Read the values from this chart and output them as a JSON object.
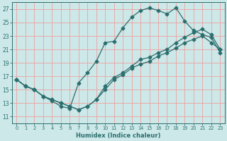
{
  "xlabel": "Humidex (Indice chaleur)",
  "bg_color": "#cce8e8",
  "line_color": "#2d6e6e",
  "grid_color": "#f0a0a0",
  "xlim": [
    -0.5,
    23.5
  ],
  "ylim": [
    10.0,
    28.0
  ],
  "yticks": [
    11,
    13,
    15,
    17,
    19,
    21,
    23,
    25,
    27
  ],
  "xticks": [
    0,
    1,
    2,
    3,
    4,
    5,
    6,
    7,
    8,
    9,
    10,
    11,
    12,
    13,
    14,
    15,
    16,
    17,
    18,
    19,
    20,
    21,
    22,
    23
  ],
  "line1_x": [
    0,
    1,
    2,
    3,
    4,
    5,
    6,
    7,
    8,
    9,
    10,
    11,
    12,
    13,
    14,
    15,
    16,
    17,
    18,
    19,
    20,
    21,
    22,
    23
  ],
  "line1_y": [
    16.5,
    15.5,
    15.0,
    14.0,
    13.3,
    12.5,
    12.2,
    16.0,
    17.5,
    19.2,
    22.0,
    22.2,
    24.2,
    25.8,
    26.8,
    27.2,
    26.8,
    26.3,
    27.2,
    25.2,
    23.8,
    23.2,
    22.8,
    20.5
  ],
  "line2_x": [
    0,
    1,
    2,
    3,
    4,
    5,
    6,
    7,
    8,
    9,
    10,
    11,
    12,
    13,
    14,
    15,
    16,
    17,
    18,
    19,
    20,
    21,
    22,
    23
  ],
  "line2_y": [
    16.5,
    15.5,
    15.0,
    14.0,
    13.5,
    13.0,
    12.5,
    12.0,
    12.5,
    13.5,
    15.5,
    16.8,
    17.5,
    18.5,
    19.5,
    19.8,
    20.5,
    21.0,
    22.0,
    22.8,
    23.5,
    24.0,
    23.2,
    21.0
  ],
  "line3_x": [
    0,
    1,
    2,
    3,
    4,
    5,
    6,
    7,
    8,
    9,
    10,
    11,
    12,
    13,
    14,
    15,
    16,
    17,
    18,
    19,
    20,
    21,
    22,
    23
  ],
  "line3_y": [
    16.5,
    15.5,
    15.0,
    14.0,
    13.5,
    13.0,
    12.5,
    12.0,
    12.5,
    13.5,
    15.0,
    16.5,
    17.2,
    18.2,
    18.8,
    19.2,
    20.0,
    20.5,
    21.2,
    22.0,
    22.5,
    23.0,
    22.0,
    21.0
  ]
}
